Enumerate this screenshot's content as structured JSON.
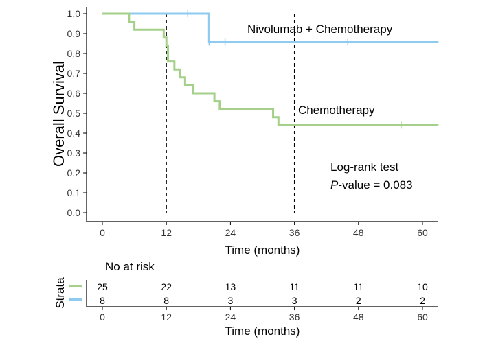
{
  "chart_data": {
    "type": "line",
    "subtype": "kaplan-meier",
    "xlabel": "Time (months)",
    "ylabel": "Overall Survival",
    "xlim": [
      0,
      63
    ],
    "ylim": [
      0,
      1.0
    ],
    "x_ticks": [
      "0",
      "12",
      "24",
      "36",
      "48",
      "60"
    ],
    "y_ticks": [
      "0.0",
      "0.1",
      "0.2",
      "0.3",
      "0.4",
      "0.5",
      "0.6",
      "0.7",
      "0.8",
      "0.9",
      "1.0"
    ],
    "grid": false,
    "reference_lines_x": [
      12,
      36
    ],
    "series": [
      {
        "name": "Nivolumab + Chemotherapy",
        "color": "#8ecbef",
        "steps": [
          [
            0,
            1.0
          ],
          [
            20,
            0.857
          ],
          [
            63,
            0.857
          ]
        ],
        "censor_x": [
          16,
          20,
          23,
          46
        ]
      },
      {
        "name": "Chemotherapy",
        "color": "#a4d089",
        "steps": [
          [
            0,
            1.0
          ],
          [
            5,
            0.96
          ],
          [
            6,
            0.92
          ],
          [
            11.5,
            0.88
          ],
          [
            12,
            0.84
          ],
          [
            12.3,
            0.76
          ],
          [
            13.5,
            0.72
          ],
          [
            14.5,
            0.68
          ],
          [
            15.5,
            0.64
          ],
          [
            17,
            0.6
          ],
          [
            21,
            0.56
          ],
          [
            22,
            0.52
          ],
          [
            32,
            0.48
          ],
          [
            33,
            0.44
          ],
          [
            63,
            0.44
          ]
        ],
        "censor_x": [
          56
        ]
      }
    ],
    "annotations": {
      "stat_line1": "Log-rank test",
      "stat_line2_p": "P",
      "stat_line2_rest": "-value = 0.083"
    }
  },
  "risk_table": {
    "title": "No at risk",
    "strata_label": "Strata",
    "xlabel": "Time (months)",
    "times": [
      "0",
      "12",
      "24",
      "36",
      "48",
      "60"
    ],
    "rows": [
      {
        "color": "#a4d089",
        "values": [
          "25",
          "22",
          "13",
          "11",
          "11",
          "10"
        ]
      },
      {
        "color": "#8ecbef",
        "values": [
          "8",
          "8",
          "3",
          "3",
          "2",
          "2"
        ]
      }
    ]
  }
}
